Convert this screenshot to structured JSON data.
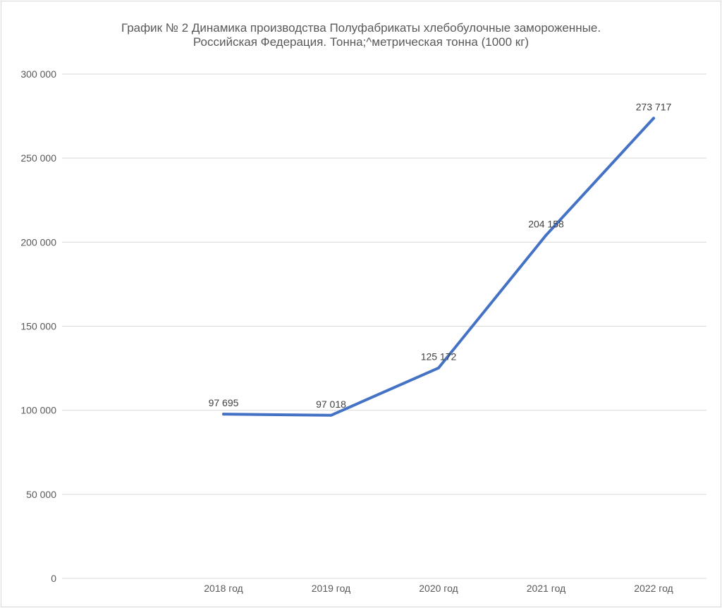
{
  "chart_data": {
    "type": "line",
    "title": "График № 2 Динамика производства Полуфабрикаты хлебобулочные замороженные.",
    "subtitle": "Российская Федерация. Тонна;^метрическая тонна (1000 кг)",
    "categories": [
      "2018 год",
      "2019 год",
      "2020 год",
      "2021 год",
      "2022 год"
    ],
    "series": [
      {
        "values": [
          97695,
          97018,
          125172,
          204158,
          273717
        ],
        "data_labels": [
          "97 695",
          "97 018",
          "125 172",
          "204 158",
          "273 717"
        ]
      }
    ],
    "y_ticks": [
      0,
      50000,
      100000,
      150000,
      200000,
      250000,
      300000
    ],
    "y_tick_labels": [
      "0",
      "50 000",
      "100 000",
      "150 000",
      "200 000",
      "250 000",
      "300 000"
    ],
    "ylim": [
      0,
      300000
    ],
    "grid": true,
    "legend": "none",
    "colors": {
      "line": "#4472c4",
      "grid": "#d9d9d9",
      "text": "#595959"
    }
  }
}
